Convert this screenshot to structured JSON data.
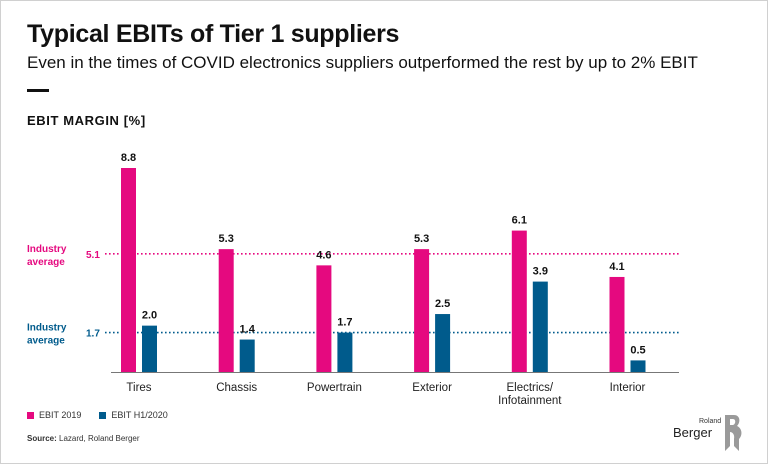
{
  "title": "Typical EBITs of Tier 1 suppliers",
  "subtitle": "Even in the times of COVID electronics suppliers outperformed the rest by up to 2% EBIT",
  "chart_data": {
    "type": "bar",
    "ylabel": "EBIT MARGIN [%]",
    "categories": [
      [
        "Tires"
      ],
      [
        "Chassis"
      ],
      [
        "Powertrain"
      ],
      [
        "Exterior"
      ],
      [
        "Electrics/",
        "Infotainment"
      ],
      [
        "Interior"
      ]
    ],
    "series": [
      {
        "name": "EBIT 2019",
        "color": "#e5097f",
        "values": [
          8.8,
          5.3,
          4.6,
          5.3,
          6.1,
          4.1
        ]
      },
      {
        "name": "EBIT H1/2020",
        "color": "#005b8c",
        "values": [
          2.0,
          1.4,
          1.7,
          2.5,
          3.9,
          0.5
        ]
      }
    ],
    "value_labels": [
      [
        "8.8",
        "5.3",
        "4.6",
        "5.3",
        "6.1",
        "4.1"
      ],
      [
        "2.0",
        "1.4",
        "1.7",
        "2.5",
        "3.9",
        "0.5"
      ]
    ],
    "ylim": [
      0,
      8.8
    ],
    "reference_lines": [
      {
        "label": [
          "Industry",
          "average"
        ],
        "value": 5.1,
        "value_label": "5.1",
        "color": "#e5097f"
      },
      {
        "label": [
          "Industry",
          "average"
        ],
        "value": 1.7,
        "value_label": "1.7",
        "color": "#005b8c"
      }
    ],
    "legend": "bottom-left",
    "grid": false
  },
  "source": {
    "label": "Source:",
    "text": "Lazard, Roland Berger"
  },
  "logo": {
    "line1": "Roland",
    "line2": "Berger"
  }
}
